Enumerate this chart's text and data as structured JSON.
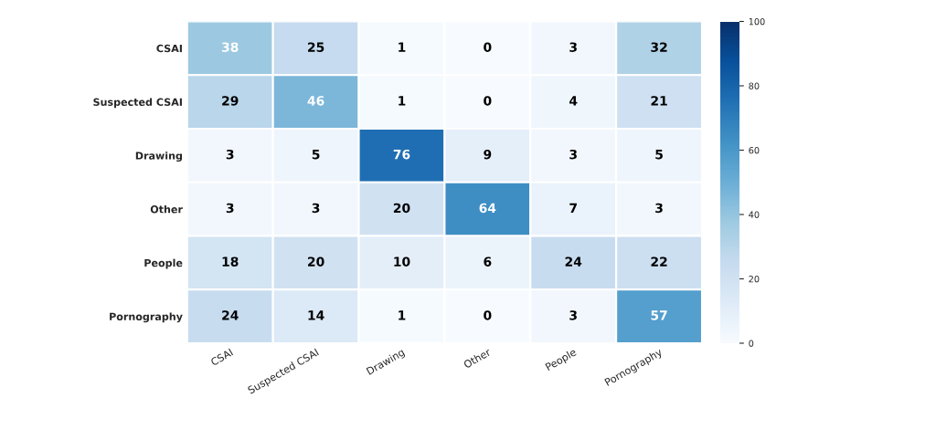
{
  "chart_data": {
    "type": "heatmap",
    "categories": [
      "CSAI",
      "Suspected CSAI",
      "Drawing",
      "Other",
      "People",
      "Pornography"
    ],
    "y_categories": [
      "CSAI",
      "Suspected CSAI",
      "Drawing",
      "Other",
      "People",
      "Pornography"
    ],
    "cells": [
      [
        38,
        25,
        1,
        0,
        3,
        32
      ],
      [
        29,
        46,
        1,
        0,
        4,
        21
      ],
      [
        3,
        5,
        76,
        9,
        3,
        5
      ],
      [
        3,
        3,
        20,
        64,
        7,
        3
      ],
      [
        18,
        20,
        10,
        6,
        24,
        22
      ],
      [
        24,
        14,
        1,
        0,
        3,
        57
      ]
    ],
    "data_labels": true,
    "clim": [
      0,
      100
    ],
    "cticks": [
      0,
      20,
      40,
      60,
      80,
      100
    ]
  }
}
